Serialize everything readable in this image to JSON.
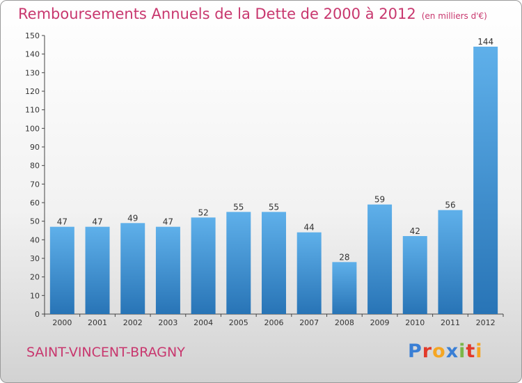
{
  "title": "Remboursements Annuels de la Dette de 2000 à 2012",
  "subtitle": "(en milliers d'€)",
  "commune": "SAINT-VINCENT-BRAGNY",
  "logo": {
    "letters": [
      "P",
      "r",
      "o",
      "x",
      "i",
      "t",
      "i"
    ],
    "colors": [
      "#3a7fd5",
      "#e23a2a",
      "#f5a623",
      "#3a7fd5",
      "#7ab648",
      "#e23a2a",
      "#f5a623"
    ]
  },
  "colors": {
    "bar": "#3f93d6",
    "bar_light": "#5fb0ea",
    "bar_dark": "#2874b6",
    "title": "#c8376e"
  },
  "chart_data": {
    "type": "bar",
    "categories": [
      "2000",
      "2001",
      "2002",
      "2003",
      "2004",
      "2005",
      "2006",
      "2007",
      "2008",
      "2009",
      "2010",
      "2011",
      "2012"
    ],
    "values": [
      47,
      47,
      49,
      47,
      52,
      55,
      55,
      44,
      28,
      59,
      42,
      56,
      144
    ],
    "ylim": [
      0,
      150
    ],
    "yticks": [
      0,
      10,
      20,
      30,
      40,
      50,
      60,
      70,
      80,
      90,
      100,
      110,
      120,
      130,
      140,
      150
    ],
    "grid": false,
    "legend": "none"
  }
}
